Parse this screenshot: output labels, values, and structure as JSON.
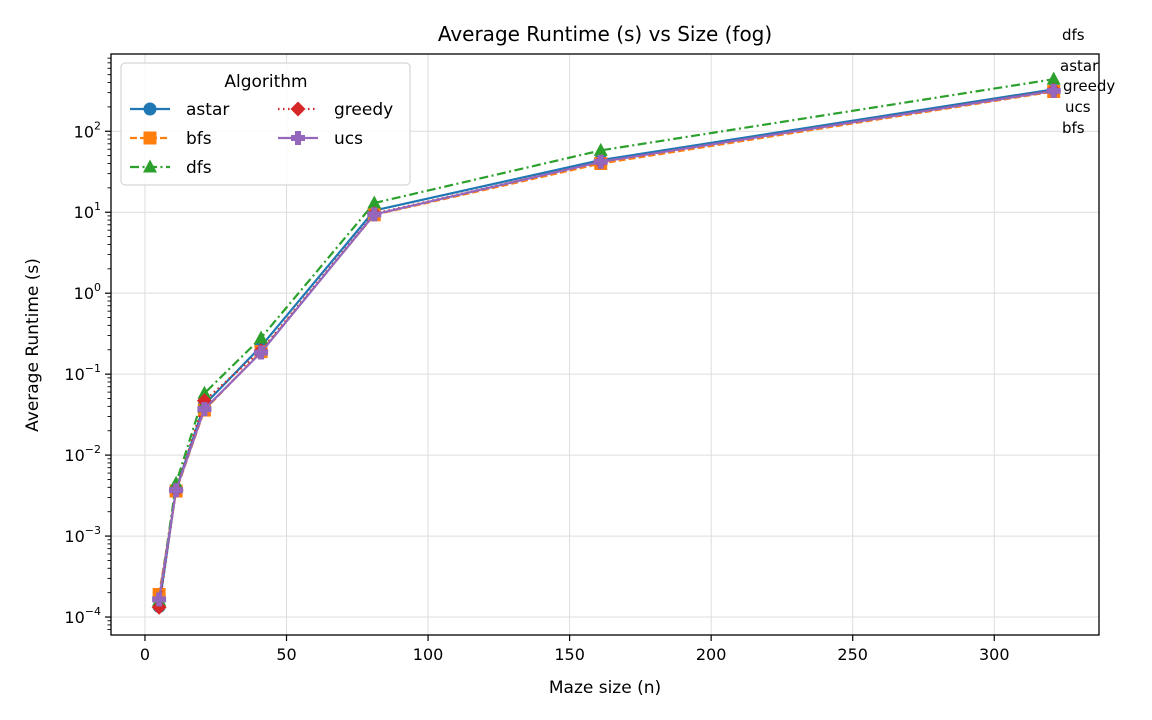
{
  "chart_data": {
    "type": "line",
    "title": "Average Runtime (s) vs Size (fog)",
    "xlabel": "Maze size (n)",
    "ylabel": "Average Runtime (s)",
    "xlim": [
      -12,
      337
    ],
    "ylim": [
      6e-05,
      900
    ],
    "yscale": "log",
    "grid": true,
    "legend": {
      "title": "Algorithm",
      "position": "top-left",
      "columns": 2
    },
    "x_ticks": [
      {
        "value": 0,
        "label": "0"
      },
      {
        "value": 50,
        "label": "50"
      },
      {
        "value": 100,
        "label": "100"
      },
      {
        "value": 150,
        "label": "150"
      },
      {
        "value": 200,
        "label": "200"
      },
      {
        "value": 250,
        "label": "250"
      },
      {
        "value": 300,
        "label": "300"
      }
    ],
    "y_ticks": [
      {
        "value": 0.0001,
        "base": "10",
        "exp": "−4"
      },
      {
        "value": 0.001,
        "base": "10",
        "exp": "−3"
      },
      {
        "value": 0.01,
        "base": "10",
        "exp": "−2"
      },
      {
        "value": 0.1,
        "base": "10",
        "exp": "−1"
      },
      {
        "value": 1,
        "base": "10",
        "exp": "0"
      },
      {
        "value": 10,
        "base": "10",
        "exp": "1"
      },
      {
        "value": 100,
        "base": "10",
        "exp": "2"
      }
    ],
    "x": [
      5,
      11,
      21,
      41,
      81,
      161,
      321
    ],
    "series": [
      {
        "name": "astar",
        "color": "#1f77b4",
        "marker": "circle",
        "dash": "solid",
        "values": [
          0.000135,
          0.0038,
          0.042,
          0.22,
          10.5,
          44,
          330
        ]
      },
      {
        "name": "bfs",
        "color": "#ff7f0e",
        "marker": "square",
        "dash": "dashed",
        "values": [
          0.00019,
          0.0036,
          0.036,
          0.19,
          9.3,
          40,
          310
        ]
      },
      {
        "name": "dfs",
        "color": "#2ca02c",
        "marker": "triangle",
        "dash": "dashdot",
        "values": [
          0.00016,
          0.0045,
          0.058,
          0.28,
          13,
          58,
          440
        ]
      },
      {
        "name": "greedy",
        "color": "#d62728",
        "marker": "diamond",
        "dash": "dotted",
        "values": [
          0.000132,
          0.0037,
          0.047,
          0.195,
          9.6,
          42,
          320
        ]
      },
      {
        "name": "ucs",
        "color": "#9467bd",
        "marker": "plus",
        "dash": "solid",
        "values": [
          0.000165,
          0.0037,
          0.037,
          0.185,
          9.4,
          42,
          315
        ]
      }
    ],
    "end_labels": [
      "dfs",
      "astar",
      "greedy",
      "ucs",
      "bfs"
    ]
  }
}
